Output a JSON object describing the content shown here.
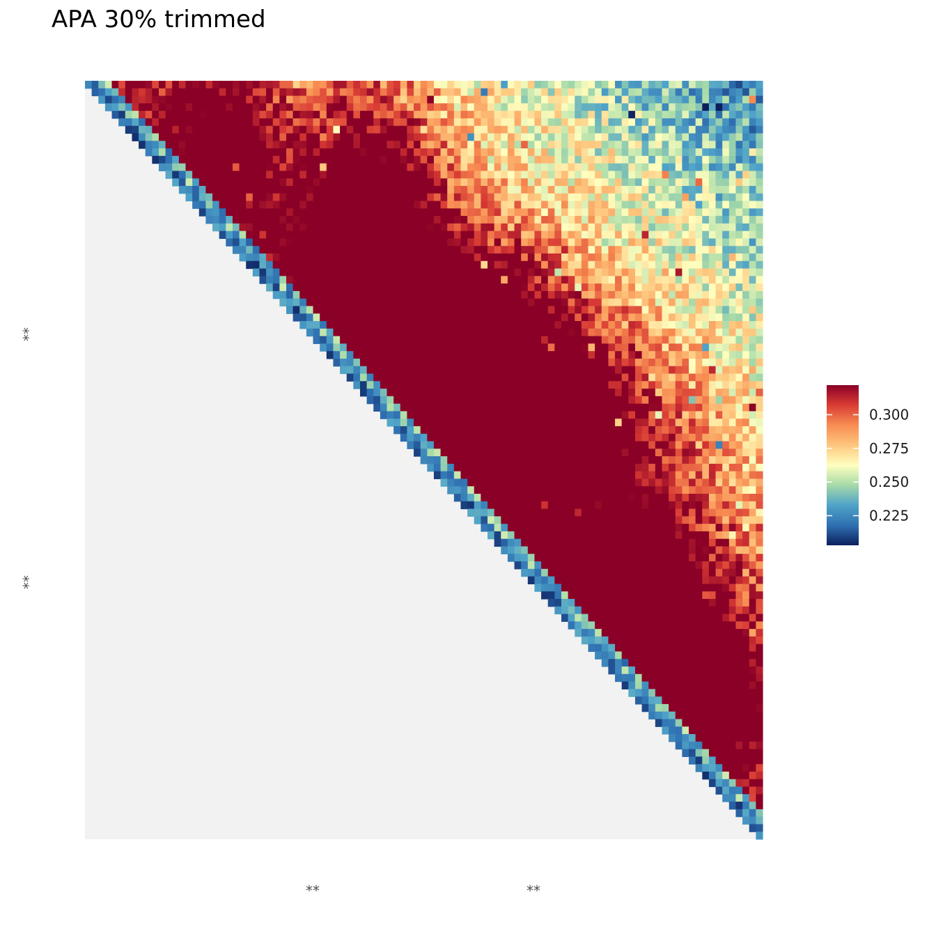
{
  "title": "APA 30% trimmed",
  "chart_data": {
    "type": "heatmap",
    "title": "APA 30% trimmed",
    "shape": "upper-triangle",
    "grid_size": 101,
    "xlabel": "",
    "ylabel": "",
    "x_tick_labels": [
      "**",
      "**"
    ],
    "y_tick_labels": [
      "**",
      "**"
    ],
    "colorscale": "Spectral (reversed): dark blue = low, dark red = high",
    "color_limits": [
      0.203,
      0.322
    ],
    "legend": {
      "position": "right",
      "ticks": [
        0.3,
        0.275,
        0.25,
        0.225
      ],
      "tick_labels": [
        "0.300",
        "0.275",
        "0.250",
        "0.225"
      ]
    },
    "lower_triangle_fill": "#f2f2f2",
    "features": [
      {
        "description": "diagonal band",
        "value_range": [
          0.205,
          0.245
        ]
      },
      {
        "description": "top-right region (far from diagonal)",
        "value_range": [
          0.203,
          0.235
        ]
      },
      {
        "description": "strip domain near top-left",
        "value_range": [
          0.31,
          0.322
        ]
      },
      {
        "description": "large central enriched domain",
        "value_range": [
          0.31,
          0.322
        ]
      },
      {
        "description": "lower-right enriched patches",
        "value_range": [
          0.29,
          0.322
        ]
      }
    ]
  },
  "colors": {
    "panel_bg": "#f2f2f2",
    "low": "#0c1f5c",
    "mid": "#ffffbf",
    "high": "#8a0026"
  }
}
